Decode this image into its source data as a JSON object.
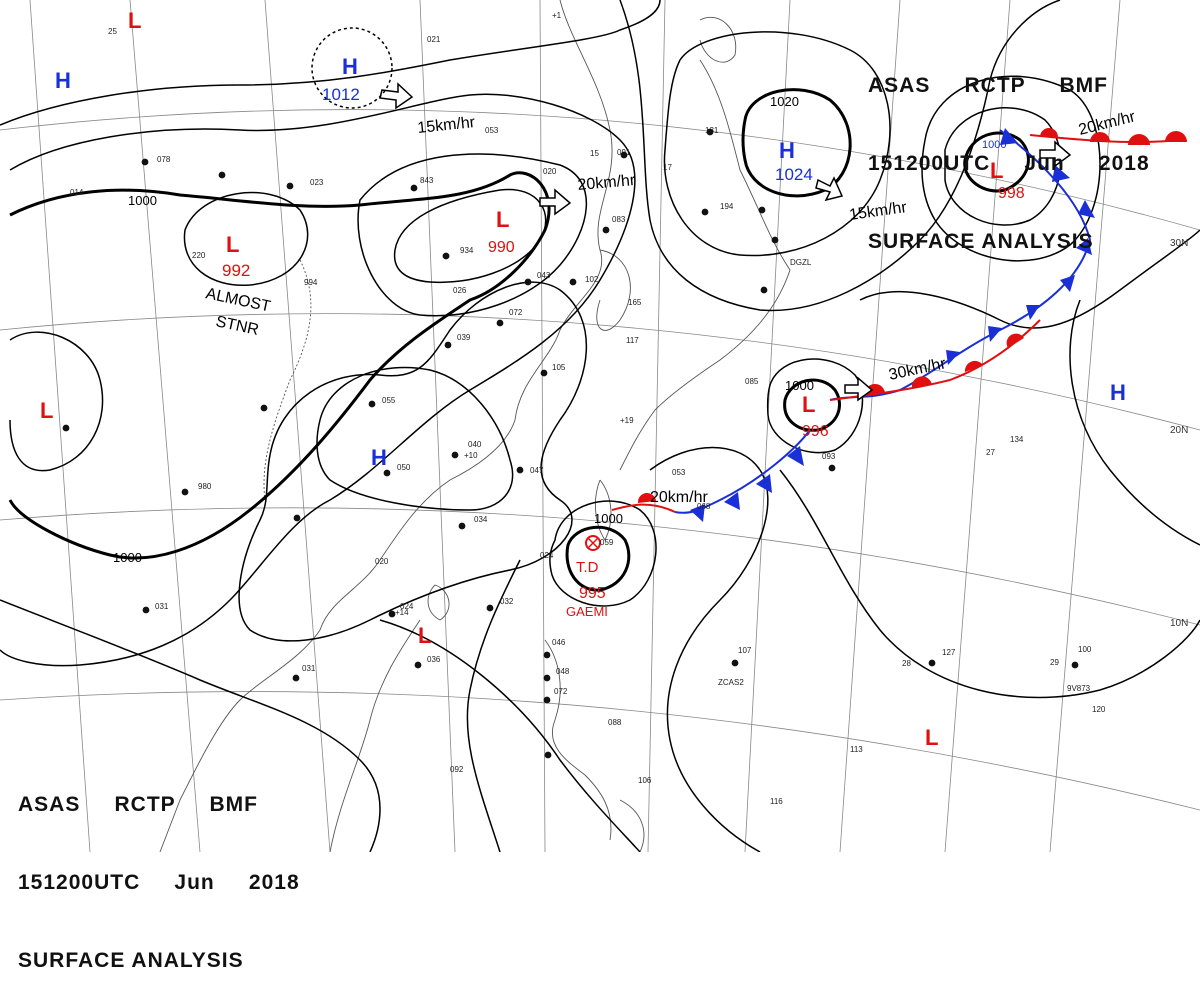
{
  "header": {
    "line1": "ASAS     RCTP     BMF",
    "line2": "151200UTC     Jun     2018",
    "line3": "SURFACE ANALYSIS"
  },
  "colors": {
    "high": "#1a2fd6",
    "low": "#e01010",
    "isobar": "#000000",
    "cold_front": "#1a2fd6",
    "warm_front": "#e01010",
    "coast": "#555555",
    "grid": "#888888"
  },
  "lat_labels": [
    "30N",
    "20N",
    "10N"
  ],
  "pressure_systems": [
    {
      "type": "L",
      "value": ""
    },
    {
      "type": "H",
      "value": ""
    },
    {
      "type": "H",
      "value": "1012"
    },
    {
      "type": "L",
      "value": "990"
    },
    {
      "type": "H",
      "value": "1024"
    },
    {
      "type": "L",
      "value": "998"
    },
    {
      "type": "L",
      "value": "992"
    },
    {
      "type": "L",
      "value": ""
    },
    {
      "type": "H",
      "value": ""
    },
    {
      "type": "L",
      "value": "996"
    },
    {
      "type": "L",
      "value": ""
    },
    {
      "type": "H",
      "value": ""
    },
    {
      "type": "L",
      "value": ""
    }
  ],
  "storm": {
    "category": "T.D",
    "pressure": "995",
    "name": "GAEMI"
  },
  "isobar_labels": [
    "1000",
    "1000",
    "1000",
    "1020",
    "1000",
    "1000",
    "1000"
  ],
  "motion_labels": [
    "15km/hr",
    "20km/hr",
    "15km/hr",
    "20km/hr",
    "30km/hr",
    "20km/hr"
  ],
  "annotations": [
    "ALMOST",
    "STNR"
  ],
  "station_values": [
    "25",
    "021",
    "053",
    "043",
    "091",
    "131",
    "078",
    "023",
    "843",
    "020",
    "194",
    "014",
    "934",
    "083",
    "220",
    "994",
    "026",
    "102",
    "165",
    "072",
    "039",
    "117",
    "055",
    "105",
    "085",
    "040",
    "047",
    "059",
    "053",
    "134",
    "093",
    "050",
    "980",
    "034",
    "068",
    "024",
    "020",
    "024",
    "032",
    "031",
    "036",
    "046",
    "048",
    "072",
    "088",
    "107",
    "127",
    "100",
    "120",
    "031",
    "092",
    "106",
    "113",
    "116",
    "9V873",
    "ZCAS2",
    "DGZL",
    "15",
    "17",
    "27",
    "29",
    "28",
    "+1",
    "+14",
    "+19",
    "+10"
  ]
}
